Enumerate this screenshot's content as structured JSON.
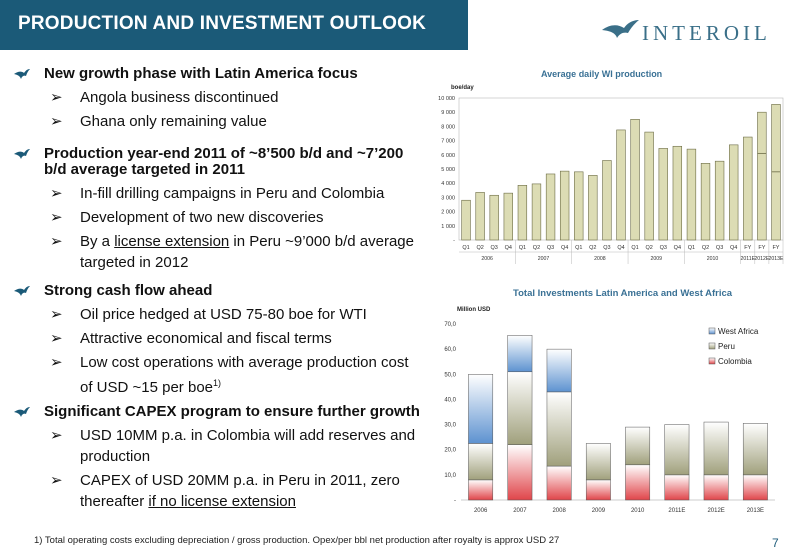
{
  "header": {
    "title": "PRODUCTION AND INVESTMENT OUTLOOK",
    "logo_text": "INTEROIL"
  },
  "bullets": [
    {
      "head": "New growth phase with Latin America focus",
      "subs": [
        "Angola business discontinued",
        "Ghana only remaining value"
      ]
    },
    {
      "head": "Production year-end 2011 of ~8’500 b/d and ~7’200 b/d average targeted in 2011",
      "subs": [
        "In-fill drilling campaigns in Peru and Colombia",
        "Development of two new discoveries"
      ],
      "license_pre": "By a ",
      "license_link": "license extension",
      "license_post": " in Peru ~9’000 b/d average targeted in 2012"
    },
    {
      "head": "Strong cash flow ahead",
      "subs": [
        "Oil price hedged at USD 75-80 boe for WTI",
        "Attractive economical and fiscal terms"
      ],
      "cost_text": "Low cost operations with average production cost of USD ~15 per boe",
      "cost_sup": "1)"
    },
    {
      "head": "Significant CAPEX program to ensure further growth",
      "subs": [
        "USD 10MM p.a. in Colombia will add reserves and production"
      ],
      "capex_pre": "CAPEX of USD 20MM p.a. in Peru in 2011, zero thereafter ",
      "capex_link": "if no license extension"
    }
  ],
  "arrow_glyph": "➢",
  "footnote": "1) Total operating costs excluding depreciation / gross production. Opex/per bbl net production after royalty is approx USD 27",
  "page_number": "7",
  "colors": {
    "title_bar": "#1b5a78",
    "chart_title": "#3a7195",
    "bar": "#dcdcb4",
    "colombia": "#e0454a",
    "peru": "#a0a07c",
    "west_africa": "#5d92d0"
  },
  "chart_data": [
    {
      "type": "bar",
      "title": "Average daily WI production",
      "ylabel": "boe/day",
      "ylim": [
        0,
        10000
      ],
      "yticks": [
        "-",
        "1 000",
        "2 000",
        "3 000",
        "4 000",
        "5 000",
        "6 000",
        "7 000",
        "8 000",
        "9 000",
        "10 000"
      ],
      "categories": [
        "Q1",
        "Q2",
        "Q3",
        "Q4",
        "Q1",
        "Q2",
        "Q3",
        "Q4",
        "Q1",
        "Q2",
        "Q3",
        "Q4",
        "Q1",
        "Q2",
        "Q3",
        "Q4",
        "Q1",
        "Q2",
        "Q3",
        "Q4",
        "FY",
        "FY",
        "FY"
      ],
      "groups": [
        "2006",
        "2007",
        "2008",
        "2009",
        "2010",
        "2011E",
        "2012E",
        "2013E"
      ],
      "group_spans": [
        4,
        4,
        4,
        4,
        4,
        1,
        1,
        1
      ],
      "values": [
        2800,
        3350,
        3150,
        3300,
        3850,
        3950,
        4650,
        4850,
        4800,
        4550,
        5600,
        7750,
        8500,
        7600,
        6450,
        6600,
        6400,
        5400,
        5550,
        6700,
        7250,
        9000,
        9550
      ],
      "inner_values": [
        null,
        null,
        null,
        null,
        null,
        null,
        null,
        null,
        null,
        null,
        null,
        null,
        null,
        null,
        null,
        null,
        null,
        null,
        null,
        null,
        null,
        6100,
        4800
      ]
    },
    {
      "type": "bar",
      "stacked": true,
      "title": "Total Investments Latin America and West Africa",
      "ylabel": "Million USD",
      "ylim": [
        0,
        70
      ],
      "yticks": [
        "-",
        "10,0",
        "20,0",
        "30,0",
        "40,0",
        "50,0",
        "60,0",
        "70,0"
      ],
      "categories": [
        "2006",
        "2007",
        "2008",
        "2009",
        "2010",
        "2011E",
        "2012E",
        "2013E"
      ],
      "series": [
        {
          "name": "Colombia",
          "values": [
            8,
            22,
            13.5,
            8,
            14,
            10,
            10,
            10
          ]
        },
        {
          "name": "Peru",
          "values": [
            14.5,
            29,
            29.5,
            14.5,
            15,
            20,
            21,
            20.5
          ]
        },
        {
          "name": "West Africa",
          "values": [
            27.5,
            14.5,
            17,
            0,
            0,
            0,
            0,
            0
          ]
        }
      ],
      "legend_order": [
        "West Africa",
        "Peru",
        "Colombia"
      ],
      "legend": "top-right"
    }
  ]
}
